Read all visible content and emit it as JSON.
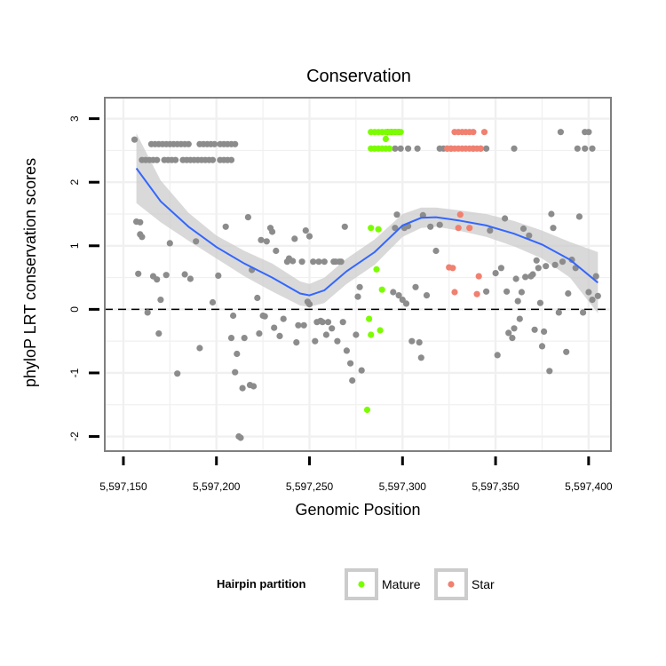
{
  "chart_data": {
    "type": "scatter",
    "title": "Conservation",
    "xlabel": "Genomic Position",
    "ylabel": "phyloP LRT conservation scores",
    "xlim": [
      5597140,
      5597412
    ],
    "ylim": [
      -2.23,
      3.33
    ],
    "x_ticks": [
      5597150,
      5597200,
      5597250,
      5597300,
      5597350,
      5597400
    ],
    "x_tick_labels": [
      "5,597,150",
      "5,597,200",
      "5,597,250",
      "5,597,300",
      "5,597,350",
      "5,597,400"
    ],
    "y_ticks": [
      -2,
      -1,
      0,
      1,
      2,
      3
    ],
    "y_tick_labels": [
      "-2",
      "-1",
      "0",
      "1",
      "2",
      "3"
    ],
    "reference_line": {
      "y": 0,
      "style": "dashed"
    },
    "grid": true,
    "colors": {
      "background_points": "#8c8c8c",
      "mature": "#7cfc00",
      "star": "#f08070",
      "smooth_line": "#3366ff",
      "ribbon": "#cccccc",
      "grid": "#f0f0f0",
      "panel_border": "#7f7f7f"
    },
    "legend": {
      "title": "Hairpin partition",
      "position": "bottom",
      "entries": [
        {
          "label": "Mature",
          "color": "#7cfc00"
        },
        {
          "label": "Star",
          "color": "#f08070"
        }
      ]
    },
    "smooth": {
      "x": [
        5597157,
        5597170,
        5597185,
        5597200,
        5597215,
        5597230,
        5597245,
        5597250,
        5597258,
        5597270,
        5597285,
        5597300,
        5597310,
        5597318,
        5597330,
        5597345,
        5597360,
        5597375,
        5597390,
        5597405
      ],
      "y": [
        2.22,
        1.7,
        1.3,
        0.98,
        0.72,
        0.5,
        0.25,
        0.22,
        0.3,
        0.6,
        0.9,
        1.32,
        1.44,
        1.45,
        1.4,
        1.32,
        1.19,
        1.02,
        0.78,
        0.42
      ],
      "lower": [
        1.67,
        1.37,
        1.08,
        0.8,
        0.52,
        0.28,
        0.06,
        0.04,
        0.1,
        0.4,
        0.7,
        1.14,
        1.28,
        1.3,
        1.24,
        1.14,
        0.99,
        0.8,
        0.5,
        -0.06
      ],
      "upper": [
        2.77,
        2.03,
        1.52,
        1.16,
        0.92,
        0.72,
        0.44,
        0.4,
        0.5,
        0.8,
        1.1,
        1.5,
        1.6,
        1.6,
        1.56,
        1.5,
        1.39,
        1.24,
        1.06,
        0.9
      ]
    },
    "series": [
      {
        "name": "Background",
        "points": [
          [
            5597156,
            2.67
          ],
          [
            5597157,
            1.38
          ],
          [
            5597159,
            1.37
          ],
          [
            5597159,
            1.18
          ],
          [
            5597160,
            1.14
          ],
          [
            5597158,
            0.56
          ],
          [
            5597163,
            -0.05
          ],
          [
            5597166,
            0.52
          ],
          [
            5597168,
            0.47
          ],
          [
            5597170,
            0.15
          ],
          [
            5597169,
            -0.38
          ],
          [
            5597173,
            0.54
          ],
          [
            5597175,
            1.04
          ],
          [
            5597179,
            -1.01
          ],
          [
            5597183,
            0.55
          ],
          [
            5597186,
            0.48
          ],
          [
            5597189,
            1.07
          ],
          [
            5597191,
            -0.61
          ],
          [
            5597198,
            0.11
          ],
          [
            5597201,
            0.53
          ],
          [
            5597205,
            1.3
          ],
          [
            5597208,
            -0.45
          ],
          [
            5597209,
            -0.1
          ],
          [
            5597210,
            -0.99
          ],
          [
            5597211,
            -0.7
          ],
          [
            5597212,
            -2.0
          ],
          [
            5597213,
            -2.02
          ],
          [
            5597214,
            -1.24
          ],
          [
            5597215,
            -0.45
          ],
          [
            5597217,
            1.45
          ],
          [
            5597218,
            -1.19
          ],
          [
            5597219,
            0.62
          ],
          [
            5597220,
            -1.21
          ],
          [
            5597222,
            0.18
          ],
          [
            5597223,
            -0.38
          ],
          [
            5597224,
            1.09
          ],
          [
            5597225,
            -0.1
          ],
          [
            5597226,
            -0.11
          ],
          [
            5597227,
            1.07
          ],
          [
            5597229,
            1.28
          ],
          [
            5597230,
            1.22
          ],
          [
            5597231,
            -0.29
          ],
          [
            5597232,
            0.92
          ],
          [
            5597234,
            -0.42
          ],
          [
            5597236,
            -0.15
          ],
          [
            5597238,
            0.75
          ],
          [
            5597239,
            0.8
          ],
          [
            5597241,
            0.76
          ],
          [
            5597242,
            1.11
          ],
          [
            5597243,
            -0.52
          ],
          [
            5597244,
            -0.25
          ],
          [
            5597246,
            0.75
          ],
          [
            5597247,
            -0.25
          ],
          [
            5597248,
            1.24
          ],
          [
            5597249,
            0.12
          ],
          [
            5597250,
            0.08
          ],
          [
            5597250,
            1.15
          ],
          [
            5597252,
            0.75
          ],
          [
            5597253,
            -0.5
          ],
          [
            5597254,
            -0.2
          ],
          [
            5597255,
            0.75
          ],
          [
            5597256,
            -0.18
          ],
          [
            5597257,
            -0.2
          ],
          [
            5597258,
            0.75
          ],
          [
            5597259,
            -0.4
          ],
          [
            5597260,
            -0.2
          ],
          [
            5597262,
            -0.3
          ],
          [
            5597263,
            0.75
          ],
          [
            5597264,
            0.75
          ],
          [
            5597265,
            -0.5
          ],
          [
            5597266,
            0.75
          ],
          [
            5597267,
            0.75
          ],
          [
            5597268,
            -0.2
          ],
          [
            5597269,
            1.3
          ],
          [
            5597270,
            -0.65
          ],
          [
            5597272,
            -0.85
          ],
          [
            5597273,
            -1.12
          ],
          [
            5597275,
            -0.4
          ],
          [
            5597276,
            0.2
          ],
          [
            5597277,
            0.35
          ],
          [
            5597278,
            -0.96
          ],
          [
            5597295,
            0.27
          ],
          [
            5597296,
            1.28
          ],
          [
            5597297,
            1.49
          ],
          [
            5597298,
            0.22
          ],
          [
            5597300,
            0.15
          ],
          [
            5597301,
            1.28
          ],
          [
            5597302,
            0.09
          ],
          [
            5597303,
            1.31
          ],
          [
            5597305,
            -0.5
          ],
          [
            5597307,
            0.35
          ],
          [
            5597309,
            -0.52
          ],
          [
            5597310,
            -0.76
          ],
          [
            5597311,
            1.48
          ],
          [
            5597313,
            0.22
          ],
          [
            5597315,
            1.3
          ],
          [
            5597318,
            0.92
          ],
          [
            5597320,
            1.33
          ],
          [
            5597345,
            0.28
          ],
          [
            5597347,
            1.24
          ],
          [
            5597350,
            0.57
          ],
          [
            5597351,
            -0.72
          ],
          [
            5597353,
            0.65
          ],
          [
            5597355,
            1.43
          ],
          [
            5597356,
            0.28
          ],
          [
            5597357,
            -0.37
          ],
          [
            5597359,
            -0.45
          ],
          [
            5597360,
            -0.3
          ],
          [
            5597361,
            0.48
          ],
          [
            5597362,
            0.13
          ],
          [
            5597363,
            -0.15
          ],
          [
            5597364,
            0.27
          ],
          [
            5597365,
            1.27
          ],
          [
            5597366,
            0.51
          ],
          [
            5597368,
            1.16
          ],
          [
            5597369,
            0.52
          ],
          [
            5597370,
            0.55
          ],
          [
            5597371,
            -0.32
          ],
          [
            5597372,
            0.77
          ],
          [
            5597373,
            0.65
          ],
          [
            5597374,
            0.1
          ],
          [
            5597375,
            -0.58
          ],
          [
            5597376,
            -0.35
          ],
          [
            5597377,
            0.68
          ],
          [
            5597379,
            -0.97
          ],
          [
            5597380,
            1.5
          ],
          [
            5597381,
            1.28
          ],
          [
            5597382,
            0.7
          ],
          [
            5597384,
            -0.05
          ],
          [
            5597386,
            0.75
          ],
          [
            5597388,
            -0.67
          ],
          [
            5597389,
            0.25
          ],
          [
            5597391,
            0.78
          ],
          [
            5597393,
            0.65
          ],
          [
            5597395,
            1.46
          ],
          [
            5597397,
            -0.05
          ],
          [
            5597400,
            0.27
          ],
          [
            5597402,
            0.15
          ],
          [
            5597404,
            0.52
          ],
          [
            5597405,
            0.21
          ]
        ],
        "rows": [
          {
            "y": 2.6,
            "x": [
              5597165,
              5597167,
              5597169,
              5597171,
              5597173,
              5597175,
              5597177,
              5597179,
              5597181,
              5597183,
              5597185,
              5597191,
              5597193,
              5597195,
              5597197,
              5597199,
              5597202,
              5597204,
              5597206,
              5597208,
              5597210
            ]
          },
          {
            "y": 2.35,
            "x": [
              5597160,
              5597162,
              5597164,
              5597166,
              5597168,
              5597172,
              5597174,
              5597176,
              5597178,
              5597182,
              5597184,
              5597186,
              5597188,
              5597190,
              5597192,
              5597194,
              5597196,
              5597198,
              5597202,
              5597204,
              5597206,
              5597208
            ]
          },
          {
            "y": 2.79,
            "x": [
              5597292,
              5597294,
              5597296,
              5597298,
              5597385,
              5597398,
              5597400
            ]
          },
          {
            "y": 2.53,
            "x": [
              5597296,
              5597299,
              5597303,
              5597308,
              5597320,
              5597322,
              5597324,
              5597326,
              5597338,
              5597342,
              5597345,
              5597360,
              5597394,
              5597398,
              5597402
            ]
          }
        ]
      },
      {
        "name": "Mature",
        "points": [
          [
            5597283,
            1.28
          ],
          [
            5597287,
            1.26
          ],
          [
            5597286,
            0.63
          ],
          [
            5597289,
            0.31
          ],
          [
            5597282,
            -0.15
          ],
          [
            5597283,
            -0.4
          ],
          [
            5597288,
            -0.33
          ],
          [
            5597281,
            -1.58
          ],
          [
            5597291,
            2.68
          ]
        ],
        "rows": [
          {
            "y": 2.79,
            "x": [
              5597283,
              5597285,
              5597287,
              5597289,
              5597291,
              5597293,
              5597295,
              5597297,
              5597299
            ]
          },
          {
            "y": 2.53,
            "x": [
              5597283,
              5597285,
              5597287,
              5597289,
              5597291,
              5597293
            ]
          }
        ]
      },
      {
        "name": "Star",
        "points": [
          [
            5597331,
            1.49
          ],
          [
            5597330,
            1.28
          ],
          [
            5597336,
            1.28
          ],
          [
            5597325,
            0.66
          ],
          [
            5597327,
            0.65
          ],
          [
            5597328,
            0.27
          ],
          [
            5597341,
            0.52
          ],
          [
            5597340,
            0.24
          ]
        ],
        "rows": [
          {
            "y": 2.79,
            "x": [
              5597328,
              5597330,
              5597332,
              5597334,
              5597336,
              5597338,
              5597344
            ]
          },
          {
            "y": 2.53,
            "x": [
              5597324,
              5597326,
              5597328,
              5597330,
              5597332,
              5597334,
              5597336,
              5597338,
              5597340,
              5597342
            ]
          }
        ]
      }
    ]
  }
}
